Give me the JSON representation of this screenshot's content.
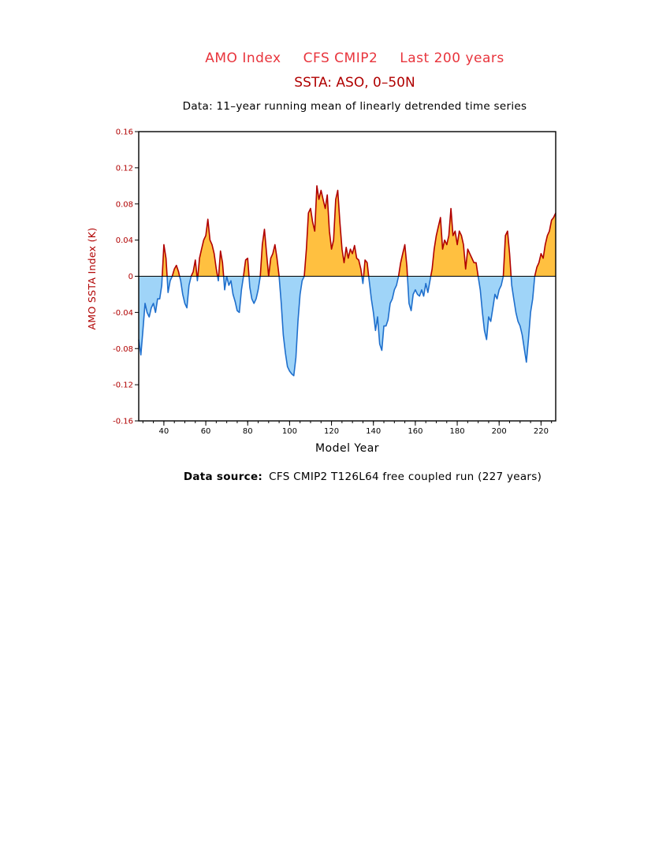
{
  "titles": {
    "line1_a": "AMO Index",
    "line1_b": "CFS CMIP2",
    "line1_c": "Last 200 years",
    "line2": "SSTA: ASO, 0–50N",
    "line3": "Data: 11–year running mean of linearly detrended time series"
  },
  "source": {
    "label": "Data source:",
    "text": "CFS CMIP2 T126L64 free coupled run (227 years)"
  },
  "colors": {
    "positive_fill": "#ffc040",
    "positive_line": "#b00000",
    "negative_fill": "#9fd4f8",
    "negative_line": "#1f6fcc",
    "title": "#e8343c",
    "axis_text": "#b00000"
  },
  "chart_data": {
    "type": "area",
    "title": "AMO Index   CFS CMIP2   Last 200 years",
    "subtitle": "SSTA: ASO, 0–50N",
    "xlabel": "Model Year",
    "ylabel": "AMO SSTA Index (K)",
    "xlim": [
      28,
      227
    ],
    "ylim": [
      -0.16,
      0.16
    ],
    "xticks": [
      40,
      60,
      80,
      100,
      120,
      140,
      160,
      180,
      200,
      220
    ],
    "yticks": [
      "-0.16",
      "-0.12",
      "-0.08",
      "-0.04",
      "0",
      "0.04",
      "0.08",
      "0.12",
      "0.16"
    ],
    "grid": false,
    "points": [
      [
        28,
        -0.07
      ],
      [
        29,
        -0.087
      ],
      [
        30,
        -0.06
      ],
      [
        31,
        -0.03
      ],
      [
        32,
        -0.04
      ],
      [
        33,
        -0.045
      ],
      [
        34,
        -0.035
      ],
      [
        35,
        -0.03
      ],
      [
        36,
        -0.04
      ],
      [
        37,
        -0.025
      ],
      [
        38,
        -0.025
      ],
      [
        39,
        -0.01
      ],
      [
        40,
        0.035
      ],
      [
        41,
        0.02
      ],
      [
        42,
        -0.018
      ],
      [
        43,
        -0.005
      ],
      [
        44,
        0
      ],
      [
        45,
        0.008
      ],
      [
        46,
        0.012
      ],
      [
        47,
        0.005
      ],
      [
        48,
        -0.005
      ],
      [
        49,
        -0.02
      ],
      [
        50,
        -0.03
      ],
      [
        51,
        -0.035
      ],
      [
        52,
        -0.01
      ],
      [
        53,
        0
      ],
      [
        54,
        0.005
      ],
      [
        55,
        0.018
      ],
      [
        56,
        -0.005
      ],
      [
        57,
        0.02
      ],
      [
        58,
        0.03
      ],
      [
        59,
        0.04
      ],
      [
        60,
        0.045
      ],
      [
        61,
        0.063
      ],
      [
        62,
        0.04
      ],
      [
        63,
        0.035
      ],
      [
        64,
        0.025
      ],
      [
        65,
        0.008
      ],
      [
        66,
        -0.005
      ],
      [
        67,
        0.028
      ],
      [
        68,
        0.015
      ],
      [
        69,
        -0.015
      ],
      [
        70,
        0
      ],
      [
        71,
        -0.01
      ],
      [
        72,
        -0.005
      ],
      [
        73,
        -0.02
      ],
      [
        74,
        -0.028
      ],
      [
        75,
        -0.038
      ],
      [
        76,
        -0.04
      ],
      [
        77,
        -0.015
      ],
      [
        78,
        0
      ],
      [
        79,
        0.018
      ],
      [
        80,
        0.02
      ],
      [
        81,
        -0.012
      ],
      [
        82,
        -0.025
      ],
      [
        83,
        -0.03
      ],
      [
        84,
        -0.025
      ],
      [
        85,
        -0.015
      ],
      [
        86,
        0
      ],
      [
        87,
        0.035
      ],
      [
        88,
        0.052
      ],
      [
        89,
        0.025
      ],
      [
        90,
        0
      ],
      [
        91,
        0.02
      ],
      [
        92,
        0.025
      ],
      [
        93,
        0.035
      ],
      [
        94,
        0.02
      ],
      [
        95,
        0
      ],
      [
        96,
        -0.03
      ],
      [
        97,
        -0.065
      ],
      [
        98,
        -0.085
      ],
      [
        99,
        -0.1
      ],
      [
        100,
        -0.105
      ],
      [
        101,
        -0.108
      ],
      [
        102,
        -0.11
      ],
      [
        103,
        -0.09
      ],
      [
        104,
        -0.05
      ],
      [
        105,
        -0.02
      ],
      [
        106,
        -0.005
      ],
      [
        107,
        0
      ],
      [
        108,
        0.03
      ],
      [
        109,
        0.07
      ],
      [
        110,
        0.075
      ],
      [
        111,
        0.06
      ],
      [
        112,
        0.05
      ],
      [
        113,
        0.1
      ],
      [
        114,
        0.085
      ],
      [
        115,
        0.095
      ],
      [
        116,
        0.085
      ],
      [
        117,
        0.075
      ],
      [
        118,
        0.09
      ],
      [
        119,
        0.05
      ],
      [
        120,
        0.03
      ],
      [
        121,
        0.04
      ],
      [
        122,
        0.085
      ],
      [
        123,
        0.095
      ],
      [
        124,
        0.06
      ],
      [
        125,
        0.03
      ],
      [
        126,
        0.015
      ],
      [
        127,
        0.032
      ],
      [
        128,
        0.02
      ],
      [
        129,
        0.03
      ],
      [
        130,
        0.025
      ],
      [
        131,
        0.034
      ],
      [
        132,
        0.02
      ],
      [
        133,
        0.018
      ],
      [
        134,
        0.008
      ],
      [
        135,
        -0.008
      ],
      [
        136,
        0.018
      ],
      [
        137,
        0.015
      ],
      [
        138,
        -0.005
      ],
      [
        139,
        -0.025
      ],
      [
        140,
        -0.04
      ],
      [
        141,
        -0.06
      ],
      [
        142,
        -0.045
      ],
      [
        143,
        -0.075
      ],
      [
        144,
        -0.082
      ],
      [
        145,
        -0.055
      ],
      [
        146,
        -0.055
      ],
      [
        147,
        -0.048
      ],
      [
        148,
        -0.03
      ],
      [
        149,
        -0.025
      ],
      [
        150,
        -0.015
      ],
      [
        151,
        -0.01
      ],
      [
        152,
        0
      ],
      [
        153,
        0.015
      ],
      [
        154,
        0.025
      ],
      [
        155,
        0.035
      ],
      [
        156,
        0.01
      ],
      [
        157,
        -0.03
      ],
      [
        158,
        -0.038
      ],
      [
        159,
        -0.02
      ],
      [
        160,
        -0.015
      ],
      [
        161,
        -0.02
      ],
      [
        162,
        -0.022
      ],
      [
        163,
        -0.015
      ],
      [
        164,
        -0.022
      ],
      [
        165,
        -0.008
      ],
      [
        166,
        -0.018
      ],
      [
        167,
        -0.005
      ],
      [
        168,
        0.008
      ],
      [
        169,
        0.03
      ],
      [
        170,
        0.045
      ],
      [
        171,
        0.055
      ],
      [
        172,
        0.065
      ],
      [
        173,
        0.03
      ],
      [
        174,
        0.04
      ],
      [
        175,
        0.035
      ],
      [
        176,
        0.045
      ],
      [
        177,
        0.075
      ],
      [
        178,
        0.045
      ],
      [
        179,
        0.05
      ],
      [
        180,
        0.035
      ],
      [
        181,
        0.05
      ],
      [
        182,
        0.045
      ],
      [
        183,
        0.035
      ],
      [
        184,
        0.008
      ],
      [
        185,
        0.03
      ],
      [
        186,
        0.025
      ],
      [
        187,
        0.02
      ],
      [
        188,
        0.015
      ],
      [
        189,
        0.015
      ],
      [
        190,
        0
      ],
      [
        191,
        -0.015
      ],
      [
        192,
        -0.04
      ],
      [
        193,
        -0.06
      ],
      [
        194,
        -0.07
      ],
      [
        195,
        -0.045
      ],
      [
        196,
        -0.05
      ],
      [
        197,
        -0.035
      ],
      [
        198,
        -0.02
      ],
      [
        199,
        -0.025
      ],
      [
        200,
        -0.015
      ],
      [
        201,
        -0.01
      ],
      [
        202,
        0
      ],
      [
        203,
        0.045
      ],
      [
        204,
        0.05
      ],
      [
        205,
        0.025
      ],
      [
        206,
        -0.01
      ],
      [
        207,
        -0.025
      ],
      [
        208,
        -0.04
      ],
      [
        209,
        -0.05
      ],
      [
        210,
        -0.055
      ],
      [
        211,
        -0.065
      ],
      [
        212,
        -0.08
      ],
      [
        213,
        -0.095
      ],
      [
        214,
        -0.07
      ],
      [
        215,
        -0.04
      ],
      [
        216,
        -0.025
      ],
      [
        217,
        0
      ],
      [
        218,
        0.01
      ],
      [
        219,
        0.015
      ],
      [
        220,
        0.025
      ],
      [
        221,
        0.02
      ],
      [
        222,
        0.035
      ],
      [
        223,
        0.045
      ],
      [
        224,
        0.05
      ],
      [
        225,
        0.062
      ],
      [
        226,
        0.065
      ],
      [
        227,
        0.07
      ]
    ]
  }
}
